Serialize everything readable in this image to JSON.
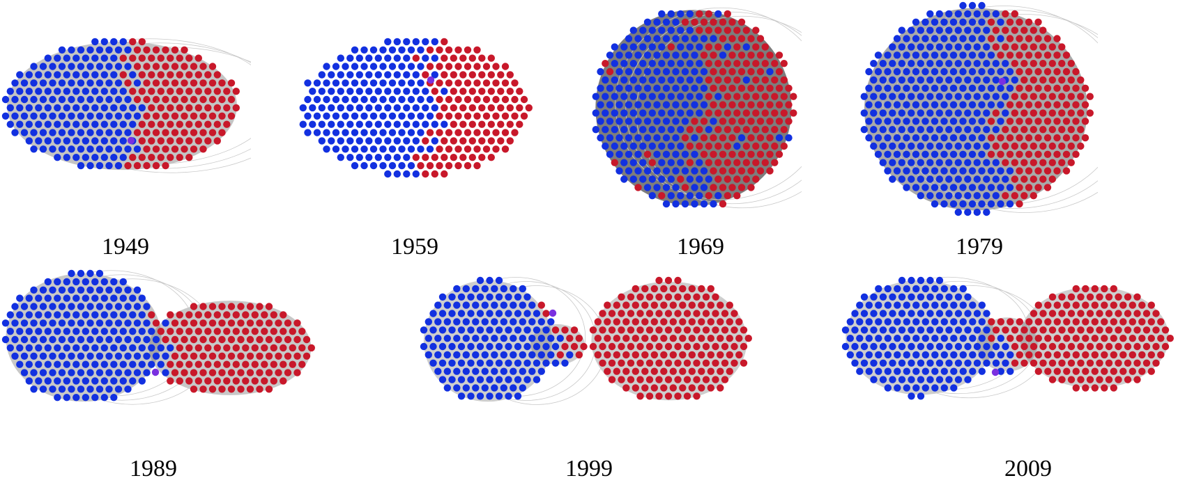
{
  "colors": {
    "democrat": "#1230e0",
    "republican": "#c8182a",
    "independent": "#7a30e0",
    "edge": "#6f6f6f"
  },
  "panels": [
    {
      "year": "1949",
      "shape": "blob",
      "blue_share": 0.56,
      "edge_density": 0.35,
      "independent": true
    },
    {
      "year": "1959",
      "shape": "blob",
      "blue_share": 0.6,
      "edge_density": 0.0,
      "independent": true
    },
    {
      "year": "1969",
      "shape": "circle",
      "blue_share": 0.57,
      "edge_density": 1.0,
      "independent": false
    },
    {
      "year": "1979",
      "shape": "circle",
      "blue_share": 0.62,
      "edge_density": 0.6,
      "independent": true
    },
    {
      "year": "1989",
      "shape": "split",
      "blue_share": 0.57,
      "edge_density": 0.3,
      "independent": true
    },
    {
      "year": "1999",
      "shape": "split",
      "blue_share": 0.49,
      "edge_density": 0.25,
      "independent": true
    },
    {
      "year": "2009",
      "shape": "split",
      "blue_share": 0.56,
      "edge_density": 0.25,
      "independent": true
    }
  ]
}
